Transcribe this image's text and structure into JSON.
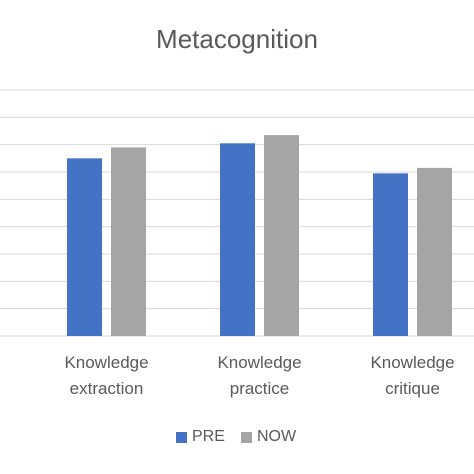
{
  "chart_data": {
    "type": "bar",
    "title": "Metacognition",
    "categories": [
      "Knowledge extraction",
      "Knowledge practice",
      "Knowledge critique"
    ],
    "series": [
      {
        "name": "PRE",
        "color": "#4472c4",
        "values": [
          6.5,
          7.05,
          5.95
        ]
      },
      {
        "name": "NOW",
        "color": "#a5a5a5",
        "values": [
          6.9,
          7.35,
          6.15
        ]
      }
    ],
    "ylim": [
      0,
      9
    ],
    "yticks": [
      0,
      1,
      2,
      3,
      4,
      5,
      6,
      7,
      8,
      9
    ],
    "grid": true,
    "legend": "bottom"
  }
}
